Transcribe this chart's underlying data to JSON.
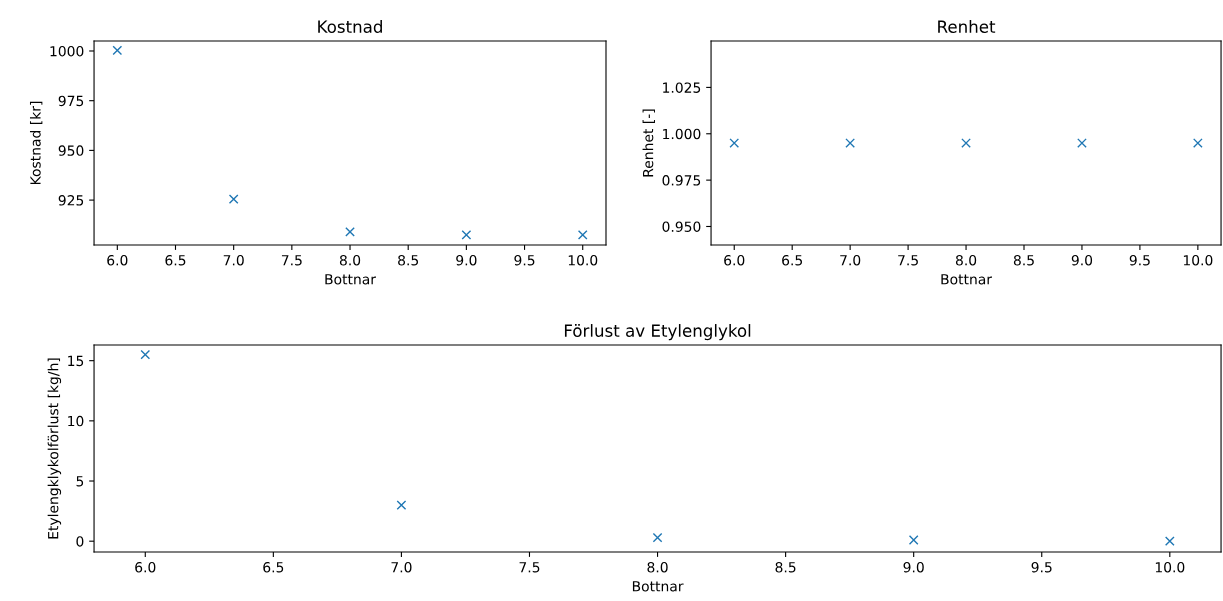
{
  "chart_data": [
    {
      "type": "scatter",
      "title": "Kostnad",
      "xlabel": "Bottnar",
      "ylabel": "Kostnad [kr]",
      "x": [
        6,
        7,
        8,
        9,
        10
      ],
      "series": [
        {
          "color": "#1f77b4",
          "values": [
            1000.3,
            925.5,
            909,
            907.5,
            907.5
          ]
        }
      ],
      "xlim": [
        5.8,
        10.2
      ],
      "xticks": [
        {
          "value": 6,
          "label": "6.0"
        },
        {
          "value": 6.5,
          "label": "6.5"
        },
        {
          "value": 7,
          "label": "7.0"
        },
        {
          "value": 7.5,
          "label": "7.5"
        },
        {
          "value": 8,
          "label": "8.0"
        },
        {
          "value": 8.5,
          "label": "8.5"
        },
        {
          "value": 9,
          "label": "9.0"
        },
        {
          "value": 9.5,
          "label": "9.5"
        },
        {
          "value": 10,
          "label": "10.0"
        }
      ],
      "ylim": [
        902.4,
        1005
      ],
      "yticks": [
        925,
        950,
        975,
        1000
      ],
      "marker": "cross",
      "grid": false,
      "legend": false
    },
    {
      "type": "scatter",
      "title": "Renhet",
      "xlabel": "Bottnar",
      "ylabel": "Renhet [-]",
      "x": [
        6,
        7,
        8,
        9,
        10
      ],
      "series": [
        {
          "color": "#1f77b4",
          "values": [
            0.995,
            0.995,
            0.995,
            0.995,
            0.995
          ]
        }
      ],
      "xlim": [
        5.8,
        10.2
      ],
      "xticks": [
        {
          "value": 6,
          "label": "6.0"
        },
        {
          "value": 6.5,
          "label": "6.5"
        },
        {
          "value": 7,
          "label": "7.0"
        },
        {
          "value": 7.5,
          "label": "7.5"
        },
        {
          "value": 8,
          "label": "8.0"
        },
        {
          "value": 8.5,
          "label": "8.5"
        },
        {
          "value": 9,
          "label": "9.0"
        },
        {
          "value": 9.5,
          "label": "9.5"
        },
        {
          "value": 10,
          "label": "10.0"
        }
      ],
      "ylim": [
        0.94,
        1.05
      ],
      "yticks": [
        {
          "value": 0.95,
          "label": "0.950"
        },
        {
          "value": 0.975,
          "label": "0.975"
        },
        {
          "value": 1.0,
          "label": "1.000"
        },
        {
          "value": 1.025,
          "label": "1.025"
        }
      ],
      "marker": "cross",
      "grid": false,
      "legend": false
    },
    {
      "type": "scatter",
      "title": "Förlust av Etylenglykol",
      "xlabel": "Bottnar",
      "ylabel": "Etylengklykolförlust [kg/h]",
      "x": [
        6,
        7,
        8,
        9,
        10
      ],
      "series": [
        {
          "color": "#1f77b4",
          "values": [
            15.5,
            3.0,
            0.3,
            0.1,
            0.0
          ]
        }
      ],
      "xlim": [
        5.8,
        10.2
      ],
      "xticks": [
        {
          "value": 6,
          "label": "6.0"
        },
        {
          "value": 6.5,
          "label": "6.5"
        },
        {
          "value": 7,
          "label": "7.0"
        },
        {
          "value": 7.5,
          "label": "7.5"
        },
        {
          "value": 8,
          "label": "8.0"
        },
        {
          "value": 8.5,
          "label": "8.5"
        },
        {
          "value": 9,
          "label": "9.0"
        },
        {
          "value": 9.5,
          "label": "9.5"
        },
        {
          "value": 10,
          "label": "10.0"
        }
      ],
      "ylim": [
        -0.9,
        16.3
      ],
      "yticks": [
        0,
        5,
        10,
        15
      ],
      "marker": "cross",
      "grid": false,
      "legend": false
    }
  ]
}
